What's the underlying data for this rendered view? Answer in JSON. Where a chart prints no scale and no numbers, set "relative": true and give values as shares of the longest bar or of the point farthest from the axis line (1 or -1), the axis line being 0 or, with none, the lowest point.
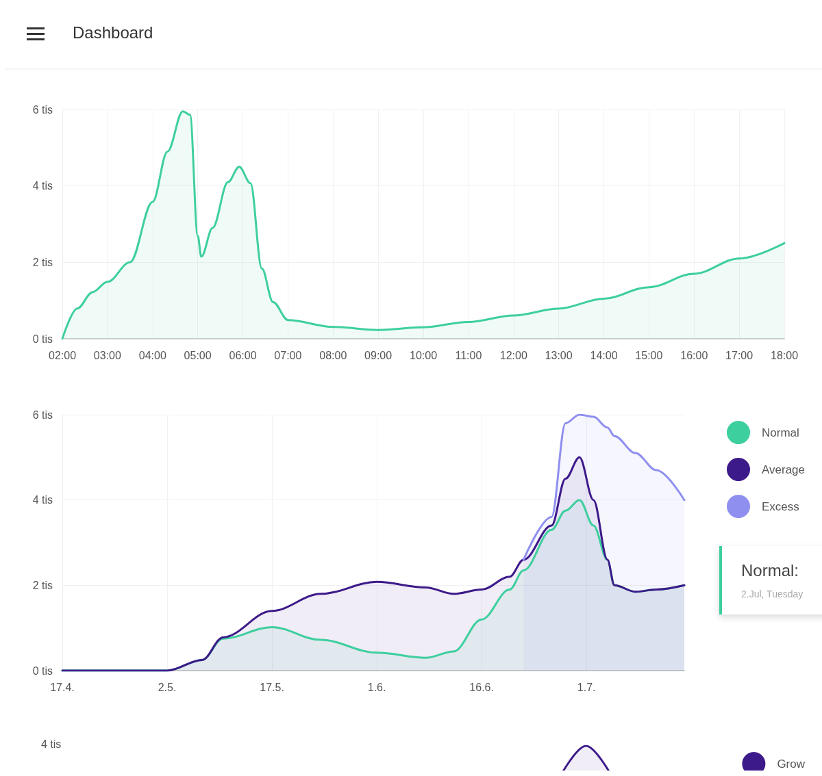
{
  "chart_data": [
    {
      "type": "area",
      "title": "Dashboard",
      "x": [
        2,
        2.33,
        2.67,
        3,
        3.5,
        4,
        4.33,
        4.67,
        4.83,
        5,
        5.08,
        5.33,
        5.67,
        5.92,
        6.17,
        6.42,
        6.67,
        7,
        8,
        9,
        10,
        11,
        12,
        13,
        14,
        15,
        16,
        17,
        18
      ],
      "series": [
        {
          "color": "#3ecf9e",
          "values": [
            0,
            0.79,
            1.22,
            1.49,
            2.0,
            3.58,
            4.9,
            5.95,
            5.86,
            2.7,
            2.15,
            2.9,
            4.1,
            4.5,
            4.07,
            1.84,
            0.96,
            0.49,
            0.31,
            0.23,
            0.3,
            0.44,
            0.61,
            0.79,
            1.05,
            1.35,
            1.7,
            2.1,
            2.5
          ]
        }
      ],
      "xlim": [
        2,
        18
      ],
      "xticks": [
        {
          "value": 2,
          "label": "02:00"
        },
        {
          "value": 3,
          "label": "03:00"
        },
        {
          "value": 4,
          "label": "04:00"
        },
        {
          "value": 5,
          "label": "05:00"
        },
        {
          "value": 6,
          "label": "06:00"
        },
        {
          "value": 7,
          "label": "07:00"
        },
        {
          "value": 8,
          "label": "08:00"
        },
        {
          "value": 9,
          "label": "09:00"
        },
        {
          "value": 10,
          "label": "10:00"
        },
        {
          "value": 11,
          "label": "11:00"
        },
        {
          "value": 12,
          "label": "12:00"
        },
        {
          "value": 13,
          "label": "13:00"
        },
        {
          "value": 14,
          "label": "14:00"
        },
        {
          "value": 15,
          "label": "15:00"
        },
        {
          "value": 16,
          "label": "16:00"
        },
        {
          "value": 17,
          "label": "17:00"
        },
        {
          "value": 18,
          "label": "18:00"
        }
      ],
      "ylim": [
        0,
        6
      ],
      "yticks": [
        {
          "value": 0,
          "label": "0 tis"
        },
        {
          "value": 2,
          "label": "2 tis"
        },
        {
          "value": 4,
          "label": "4 tis"
        },
        {
          "value": 6,
          "label": "6 tis"
        }
      ],
      "grid": true
    },
    {
      "type": "area",
      "x": [
        "--04-17",
        "--05-02",
        "--05-07",
        "--05-10",
        "--05-17",
        "--05-24",
        "--06-01",
        "--06-08",
        "--06-12",
        "--06-16",
        "--06-20",
        "--06-22",
        "--06-26",
        "--06-28",
        "--06-30",
        "--07-02",
        "--07-04",
        "--07-05",
        "--07-08",
        "--07-11",
        "--07-15"
      ],
      "series": [
        {
          "name": "Normal",
          "color": "#3ecf9e",
          "values": [
            0,
            0,
            0.25,
            0.75,
            1.02,
            0.72,
            0.42,
            0.3,
            0.45,
            1.2,
            1.9,
            2.35,
            3.3,
            3.75,
            4.0,
            3.4,
            2.6,
            2.0,
            1.85,
            1.9,
            2.0
          ]
        },
        {
          "name": "Average",
          "color": "#3d1a8a",
          "values": [
            0,
            0,
            0.25,
            0.78,
            1.4,
            1.8,
            2.08,
            1.95,
            1.8,
            1.9,
            2.2,
            2.6,
            3.4,
            4.5,
            5.0,
            4.0,
            2.6,
            2.0,
            1.85,
            1.9,
            2.0
          ]
        },
        {
          "name": "Excess",
          "color": "#8f8ff0",
          "values": [
            null,
            null,
            null,
            null,
            null,
            null,
            null,
            null,
            null,
            null,
            null,
            2.6,
            3.6,
            5.8,
            6.0,
            5.95,
            5.7,
            5.5,
            5.1,
            4.7,
            4.0
          ]
        }
      ],
      "xlim": [
        "--04-17",
        "--07-15"
      ],
      "xticks": [
        {
          "value": "--04-17",
          "label": "17.4."
        },
        {
          "value": "--05-02",
          "label": "2.5."
        },
        {
          "value": "--05-17",
          "label": "17.5."
        },
        {
          "value": "--06-01",
          "label": "1.6."
        },
        {
          "value": "--06-16",
          "label": "16.6."
        },
        {
          "value": "--07-01",
          "label": "1.7."
        }
      ],
      "ylim": [
        0,
        6
      ],
      "yticks": [
        {
          "value": 0,
          "label": "0 tis"
        },
        {
          "value": 2,
          "label": "2 tis"
        },
        {
          "value": 4,
          "label": "4 tis"
        },
        {
          "value": 6,
          "label": "6 tis"
        }
      ],
      "grid": true,
      "legend": "right",
      "annotations": [
        "Normal:",
        "2.Jul, Tuesday"
      ]
    },
    {
      "type": "area",
      "categories": [
        null,
        null,
        null
      ],
      "series": [
        {
          "name": "Grow",
          "color": "#3d1a8a",
          "values": [
            0,
            1,
            0
          ]
        }
      ],
      "relative": true,
      "annotations": [
        "4 tis"
      ],
      "legend": "right"
    }
  ]
}
